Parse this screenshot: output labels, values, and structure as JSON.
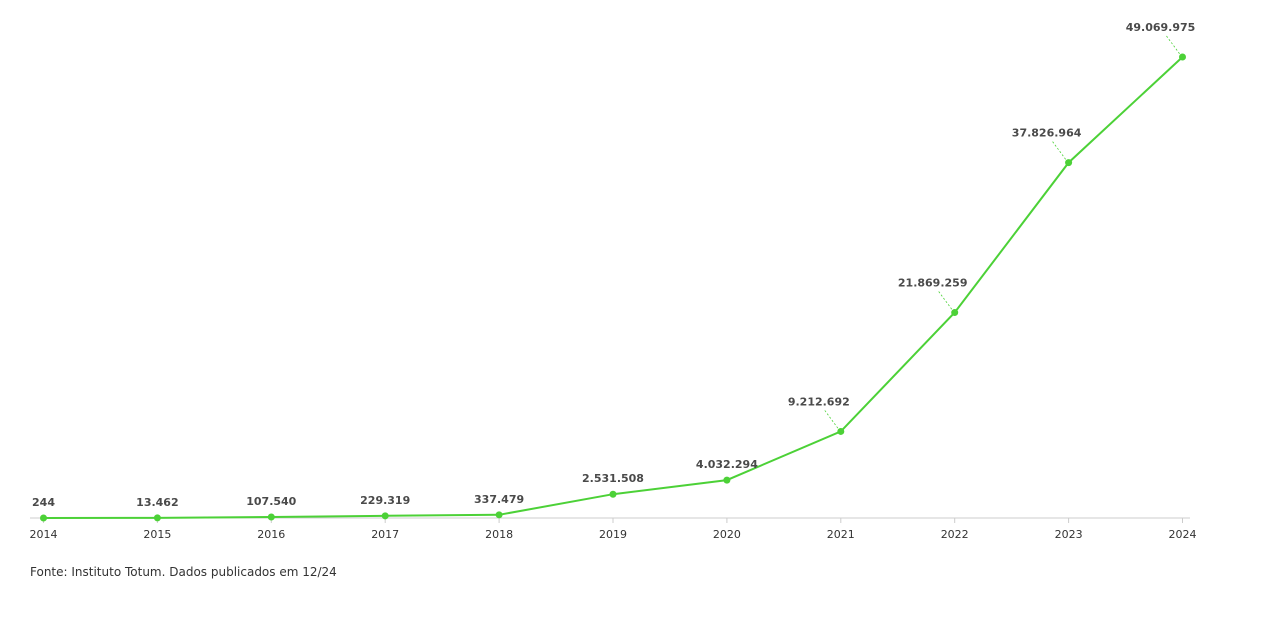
{
  "chart_data": {
    "type": "line",
    "x": [
      "2014",
      "2015",
      "2016",
      "2017",
      "2018",
      "2019",
      "2020",
      "2021",
      "2022",
      "2023",
      "2024"
    ],
    "values": [
      244,
      13462,
      107540,
      229319,
      337479,
      2531508,
      4032294,
      9212692,
      21869259,
      37826964,
      49069975
    ],
    "data_labels": [
      "244",
      "13.462",
      "107.540",
      "229.319",
      "337.479",
      "2.531.508",
      "4.032.294",
      "9.212.692",
      "21.869.259",
      "37.826.964",
      "49.069.975"
    ],
    "title": "",
    "xlabel": "",
    "ylabel": "",
    "ylim": [
      0,
      49069975
    ],
    "grid": false,
    "legend": "none",
    "colors": {
      "line": "#4cd137",
      "axis": "#cccccc",
      "label_text": "#4a4a4a",
      "tick_text": "#333333"
    }
  },
  "source_note": "Fonte: Instituto Totum. Dados publicados em 12/24"
}
